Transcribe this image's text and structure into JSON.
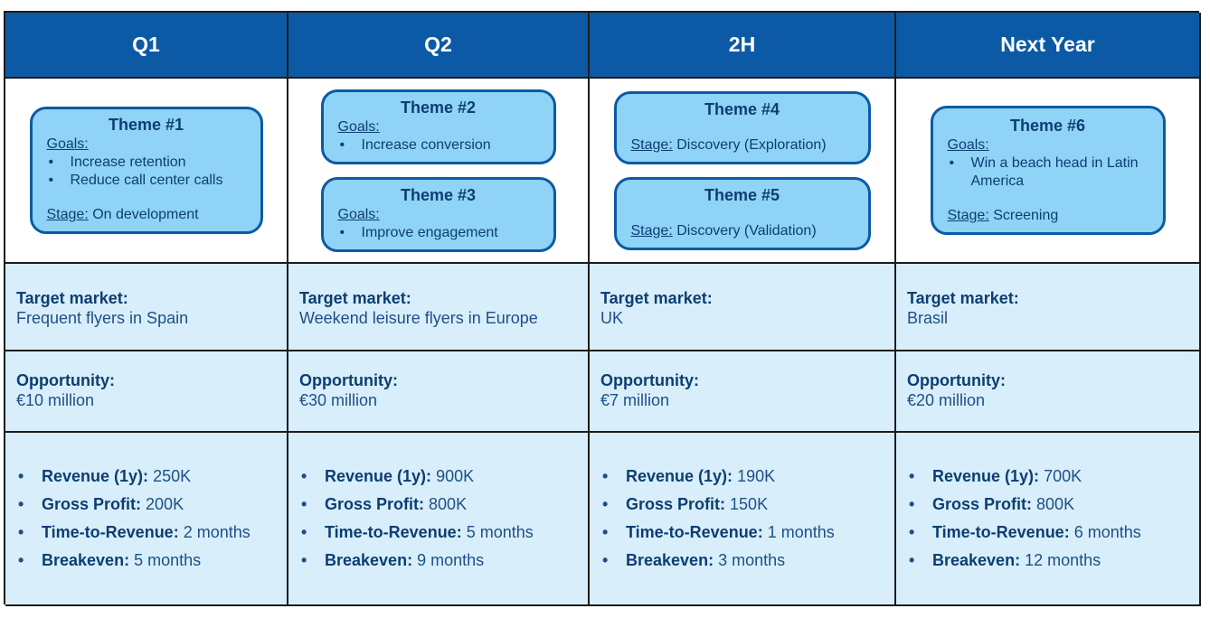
{
  "columns": [
    {
      "header": "Q1",
      "themes": [
        {
          "title": "Theme #1",
          "goals_label": "Goals:",
          "goals": [
            "Increase retention",
            "Reduce call center calls"
          ],
          "stage_label": "Stage:",
          "stage": "On development"
        }
      ],
      "target_market_label": "Target market:",
      "target_market": "Frequent flyers in Spain",
      "opportunity_label": "Opportunity:",
      "opportunity": "€10 million",
      "metrics": [
        {
          "label": "Revenue (1y):",
          "value": "250K"
        },
        {
          "label": "Gross Profit:",
          "value": "200K"
        },
        {
          "label": "Time-to-Revenue:",
          "value": "2 months"
        },
        {
          "label": "Breakeven:",
          "value": "5 months"
        }
      ]
    },
    {
      "header": "Q2",
      "themes": [
        {
          "title": "Theme #2",
          "goals_label": "Goals:",
          "goals": [
            "Increase conversion"
          ]
        },
        {
          "title": "Theme #3",
          "goals_label": "Goals:",
          "goals": [
            "Improve engagement"
          ]
        }
      ],
      "target_market_label": "Target market:",
      "target_market": "Weekend leisure flyers in Europe",
      "opportunity_label": "Opportunity:",
      "opportunity": "€30 million",
      "metrics": [
        {
          "label": "Revenue (1y):",
          "value": "900K"
        },
        {
          "label": "Gross Profit:",
          "value": "800K"
        },
        {
          "label": "Time-to-Revenue:",
          "value": "5 months"
        },
        {
          "label": "Breakeven:",
          "value": "9 months"
        }
      ]
    },
    {
      "header": "2H",
      "themes": [
        {
          "title": "Theme #4",
          "stage_label": "Stage:",
          "stage": "Discovery (Exploration)"
        },
        {
          "title": "Theme #5",
          "stage_label": "Stage:",
          "stage": "Discovery (Validation)"
        }
      ],
      "target_market_label": "Target market:",
      "target_market": "UK",
      "opportunity_label": "Opportunity:",
      "opportunity": "€7 million",
      "metrics": [
        {
          "label": "Revenue (1y):",
          "value": "190K"
        },
        {
          "label": "Gross Profit:",
          "value": "150K"
        },
        {
          "label": "Time-to-Revenue:",
          "value": "1 months"
        },
        {
          "label": "Breakeven:",
          "value": "3 months"
        }
      ]
    },
    {
      "header": "Next Year",
      "themes": [
        {
          "title": "Theme #6",
          "goals_label": "Goals:",
          "goals": [
            "Win a beach head in Latin America"
          ],
          "stage_label": "Stage:",
          "stage": "Screening"
        }
      ],
      "target_market_label": "Target market:",
      "target_market": "Brasil",
      "opportunity_label": "Opportunity:",
      "opportunity": "€20 million",
      "metrics": [
        {
          "label": "Revenue (1y):",
          "value": "700K"
        },
        {
          "label": "Gross Profit:",
          "value": "800K"
        },
        {
          "label": "Time-to-Revenue:",
          "value": "6 months"
        },
        {
          "label": "Breakeven:",
          "value": "12 months"
        }
      ]
    }
  ],
  "colors": {
    "header_bg": "#0c5aa5",
    "theme_box_bg": "#8fd3f7",
    "info_bg": "#d8eefa",
    "text": "#1f4f86"
  }
}
